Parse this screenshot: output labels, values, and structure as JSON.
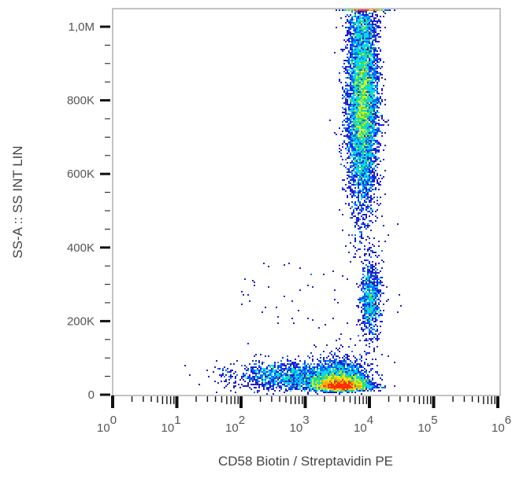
{
  "chart_data": {
    "type": "scatter",
    "subtype": "density-dot-plot",
    "title": "",
    "xlabel": "CD58 Biotin / Streptavidin PE",
    "ylabel": "SS-A :: SS INT LIN",
    "x_scale": "log",
    "xlim": [
      1,
      1000000
    ],
    "ylim": [
      0,
      1050000
    ],
    "x_ticks": [
      {
        "value": 1,
        "base": "10",
        "exp": "0"
      },
      {
        "value": 10,
        "base": "10",
        "exp": "1"
      },
      {
        "value": 100,
        "base": "10",
        "exp": "2"
      },
      {
        "value": 1000,
        "base": "10",
        "exp": "3"
      },
      {
        "value": 10000,
        "base": "10",
        "exp": "4"
      },
      {
        "value": 100000,
        "base": "10",
        "exp": "5"
      },
      {
        "value": 1000000,
        "base": "10",
        "exp": "6"
      }
    ],
    "y_ticks": [
      {
        "value": 0,
        "label": "0"
      },
      {
        "value": 200000,
        "label": "200K"
      },
      {
        "value": 400000,
        "label": "400K"
      },
      {
        "value": 600000,
        "label": "600K"
      },
      {
        "value": 800000,
        "label": "800K"
      },
      {
        "value": 1000000,
        "label": "1,0M"
      }
    ],
    "grid": false,
    "legend": "none",
    "color_scale": [
      "#1f1fd0",
      "#0070ff",
      "#00d8ff",
      "#30e060",
      "#d8f020",
      "#ffb000",
      "#ff3000"
    ],
    "populations": [
      {
        "x_center": 3500,
        "x_log_sd": 0.22,
        "y_center": 65000,
        "y_sd": 22000,
        "count": 4200
      },
      {
        "x_center": 600,
        "x_log_sd": 0.45,
        "y_center": 50000,
        "y_sd": 20000,
        "count": 1500
      },
      {
        "x_center": 7800,
        "x_log_sd": 0.12,
        "y_center": 790000,
        "y_sd": 140000,
        "count": 6500
      },
      {
        "x_center": 10500,
        "x_log_sd": 0.08,
        "y_center": 260000,
        "y_sd": 55000,
        "count": 900
      },
      {
        "x_center": 8500,
        "x_log_sd": 0.15,
        "y_center": 1050000,
        "y_sd": 0,
        "count": 350
      }
    ]
  }
}
